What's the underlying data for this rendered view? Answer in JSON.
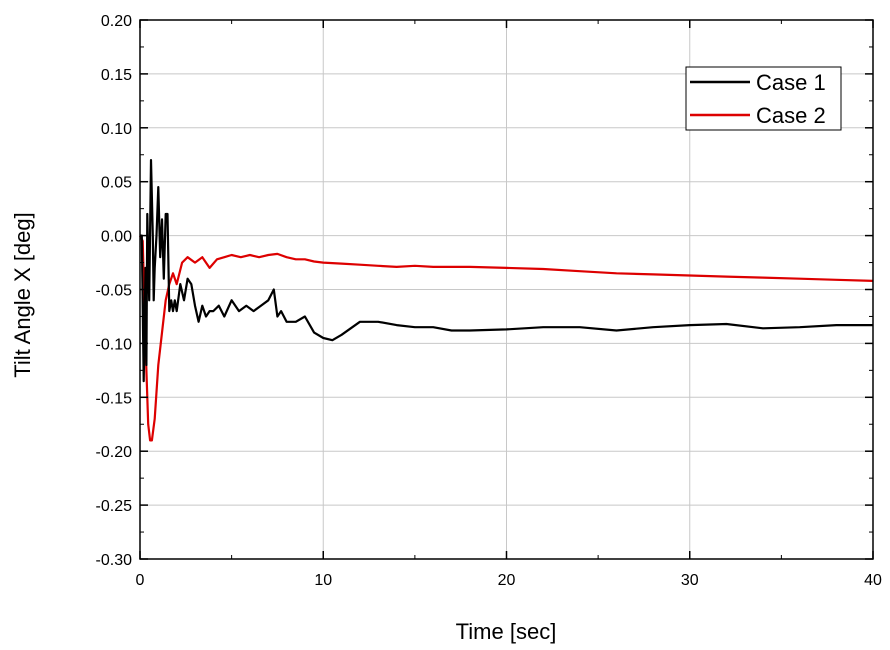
{
  "chart_data": {
    "type": "line",
    "title": "",
    "xlabel": "Time [sec]",
    "ylabel": "Tilt Angle X [deg]",
    "xlim": [
      0,
      40
    ],
    "ylim": [
      -0.3,
      0.2
    ],
    "x_ticks": [
      0,
      10,
      20,
      30,
      40
    ],
    "x_tick_labels": [
      "0",
      "10",
      "20",
      "30",
      "40"
    ],
    "y_ticks": [
      -0.3,
      -0.25,
      -0.2,
      -0.15,
      -0.1,
      -0.05,
      0.0,
      0.05,
      0.1,
      0.15,
      0.2
    ],
    "y_tick_labels": [
      "-0.30",
      "-0.25",
      "-0.20",
      "-0.15",
      "-0.10",
      "-0.05",
      "0.00",
      "0.05",
      "0.10",
      "0.15",
      "0.20"
    ],
    "grid": true,
    "legend_position": "top-right",
    "series": [
      {
        "name": "Case 1",
        "color": "#000000",
        "x": [
          0,
          0.1,
          0.2,
          0.3,
          0.35,
          0.4,
          0.5,
          0.6,
          0.7,
          0.75,
          0.8,
          0.9,
          1.0,
          1.1,
          1.2,
          1.3,
          1.4,
          1.5,
          1.6,
          1.7,
          1.8,
          1.9,
          2.0,
          2.2,
          2.4,
          2.6,
          2.8,
          3.0,
          3.2,
          3.4,
          3.6,
          3.8,
          4.0,
          4.3,
          4.6,
          5.0,
          5.4,
          5.8,
          6.2,
          6.6,
          7.0,
          7.3,
          7.5,
          7.7,
          8.0,
          8.5,
          9.0,
          9.5,
          10.0,
          10.5,
          11.0,
          12.0,
          13.0,
          14.0,
          15.0,
          16.0,
          17.0,
          18.0,
          20.0,
          22.0,
          24.0,
          26.0,
          28.0,
          30.0,
          32.0,
          34.0,
          36.0,
          38.0,
          40.0
        ],
        "y": [
          0.0,
          0.0,
          -0.135,
          -0.03,
          -0.12,
          0.02,
          -0.06,
          0.07,
          0.0,
          -0.06,
          -0.03,
          0.0,
          0.045,
          -0.02,
          0.015,
          -0.04,
          0.02,
          0.02,
          -0.07,
          -0.06,
          -0.07,
          -0.06,
          -0.07,
          -0.045,
          -0.06,
          -0.04,
          -0.045,
          -0.065,
          -0.08,
          -0.065,
          -0.075,
          -0.07,
          -0.07,
          -0.065,
          -0.075,
          -0.06,
          -0.07,
          -0.065,
          -0.07,
          -0.065,
          -0.06,
          -0.05,
          -0.075,
          -0.07,
          -0.08,
          -0.08,
          -0.075,
          -0.09,
          -0.095,
          -0.097,
          -0.092,
          -0.08,
          -0.08,
          -0.083,
          -0.085,
          -0.085,
          -0.088,
          -0.088,
          -0.087,
          -0.085,
          -0.085,
          -0.088,
          -0.085,
          -0.083,
          -0.082,
          -0.086,
          -0.085,
          -0.083,
          -0.083
        ]
      },
      {
        "name": "Case 2",
        "color": "#dd0000",
        "x": [
          0,
          0.15,
          0.3,
          0.45,
          0.55,
          0.65,
          0.8,
          1.0,
          1.2,
          1.4,
          1.6,
          1.8,
          2.0,
          2.3,
          2.6,
          3.0,
          3.4,
          3.8,
          4.2,
          4.6,
          5.0,
          5.5,
          6.0,
          6.5,
          7.0,
          7.5,
          8.0,
          8.5,
          9.0,
          9.5,
          10.0,
          11.0,
          12.0,
          13.0,
          14.0,
          15.0,
          16.0,
          17.0,
          18.0,
          20.0,
          22.0,
          24.0,
          26.0,
          28.0,
          30.0,
          32.0,
          34.0,
          36.0,
          38.0,
          40.0
        ],
        "y": [
          0.0,
          -0.005,
          -0.1,
          -0.175,
          -0.19,
          -0.19,
          -0.17,
          -0.12,
          -0.09,
          -0.06,
          -0.045,
          -0.035,
          -0.045,
          -0.025,
          -0.02,
          -0.025,
          -0.02,
          -0.03,
          -0.022,
          -0.02,
          -0.018,
          -0.02,
          -0.018,
          -0.02,
          -0.018,
          -0.017,
          -0.02,
          -0.022,
          -0.022,
          -0.024,
          -0.025,
          -0.026,
          -0.027,
          -0.028,
          -0.029,
          -0.028,
          -0.029,
          -0.029,
          -0.029,
          -0.03,
          -0.031,
          -0.033,
          -0.035,
          -0.036,
          -0.037,
          -0.038,
          -0.039,
          -0.04,
          -0.041,
          -0.042
        ]
      }
    ]
  }
}
